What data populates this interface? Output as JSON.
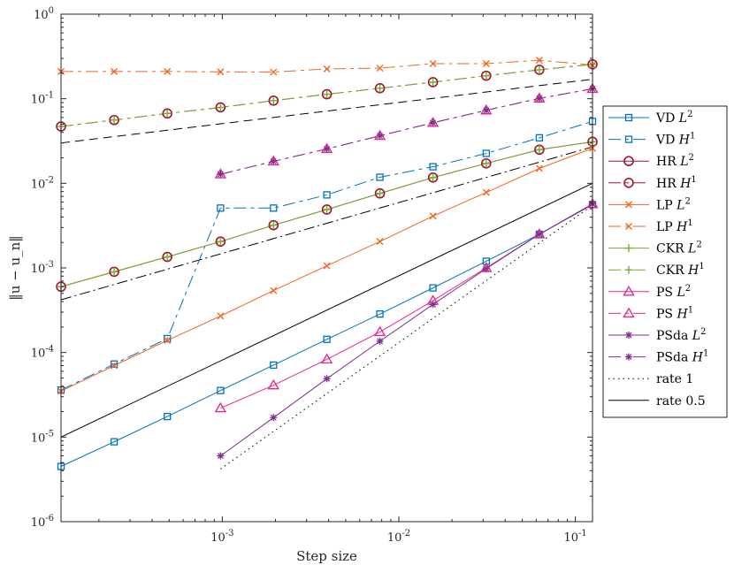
{
  "chart_data": {
    "type": "line",
    "scale": "loglog",
    "xlabel": "Step size",
    "ylabel": "‖u − u_n‖",
    "xlim": [
      0.000122,
      0.125
    ],
    "ylim": [
      1e-06,
      1
    ],
    "x_ticks": [
      {
        "value": 0.001,
        "base": "10",
        "exp": "-3"
      },
      {
        "value": 0.01,
        "base": "10",
        "exp": "-2"
      },
      {
        "value": 0.1,
        "base": "10",
        "exp": "-1"
      }
    ],
    "y_ticks": [
      {
        "value": 1e-06,
        "base": "10",
        "exp": "-6"
      },
      {
        "value": 1e-05,
        "base": "10",
        "exp": "-5"
      },
      {
        "value": 0.0001,
        "base": "10",
        "exp": "-4"
      },
      {
        "value": 0.001,
        "base": "10",
        "exp": "-3"
      },
      {
        "value": 0.01,
        "base": "10",
        "exp": "-2"
      },
      {
        "value": 0.1,
        "base": "10",
        "exp": "-1"
      },
      {
        "value": 1,
        "base": "10",
        "exp": "0"
      }
    ],
    "series": [
      {
        "name": "VD L2",
        "label": "VD",
        "norm": "L",
        "sup": "2",
        "color": "#0072BD",
        "dash": "",
        "marker": "square",
        "x": [
          0.000122,
          0.000244,
          0.000488,
          0.000977,
          0.00195,
          0.00391,
          0.00781,
          0.0156,
          0.03125,
          0.0625,
          0.125
        ],
        "y": [
          4.5e-06,
          8.8e-06,
          1.75e-05,
          3.55e-05,
          7.1e-05,
          0.000143,
          0.000285,
          0.00058,
          0.0012,
          0.0025,
          0.0056
        ]
      },
      {
        "name": "VD H1",
        "label": "VD",
        "norm": "H",
        "sup": "1",
        "color": "#0072BD",
        "dash": "14,5,4,5",
        "marker": "square",
        "x": [
          0.000122,
          0.000244,
          0.000488,
          0.000977,
          0.00195,
          0.00391,
          0.00781,
          0.0156,
          0.03125,
          0.0625,
          0.125
        ],
        "y": [
          3.6e-05,
          7.3e-05,
          0.000146,
          0.0051,
          0.0051,
          0.0073,
          0.0118,
          0.0157,
          0.0226,
          0.0345,
          0.054
        ]
      },
      {
        "name": "HR L2",
        "label": "HR",
        "norm": "L",
        "sup": "2",
        "color": "#A2142F",
        "dash": "",
        "marker": "circle",
        "x": [
          0.000122,
          0.000244,
          0.000488,
          0.000977,
          0.00195,
          0.00391,
          0.00781,
          0.0156,
          0.03125,
          0.0625,
          0.125
        ],
        "y": [
          0.0006,
          0.0009,
          0.00135,
          0.00205,
          0.0032,
          0.0049,
          0.0076,
          0.0117,
          0.0172,
          0.025,
          0.031
        ]
      },
      {
        "name": "HR H1",
        "label": "HR",
        "norm": "H",
        "sup": "1",
        "color": "#A2142F",
        "dash": "14,5,4,5",
        "marker": "circle",
        "x": [
          0.000122,
          0.000244,
          0.000488,
          0.000977,
          0.00195,
          0.00391,
          0.00781,
          0.0156,
          0.03125,
          0.0625,
          0.125
        ],
        "y": [
          0.047,
          0.056,
          0.067,
          0.079,
          0.095,
          0.113,
          0.133,
          0.157,
          0.187,
          0.22,
          0.255
        ]
      },
      {
        "name": "LP L2",
        "label": "LP",
        "norm": "L",
        "sup": "2",
        "color": "#F26522",
        "dash": "",
        "marker": "x",
        "x": [
          0.000122,
          0.000244,
          0.000488,
          0.000977,
          0.00195,
          0.00391,
          0.00781,
          0.0156,
          0.03125,
          0.0625,
          0.125
        ],
        "y": [
          3.5e-05,
          7e-05,
          0.000139,
          0.00027,
          0.00054,
          0.00106,
          0.00205,
          0.0041,
          0.0078,
          0.015,
          0.026
        ]
      },
      {
        "name": "LP H1",
        "label": "LP",
        "norm": "H",
        "sup": "1",
        "color": "#F26522",
        "dash": "14,5,4,5",
        "marker": "x",
        "x": [
          0.000122,
          0.000244,
          0.000488,
          0.000977,
          0.00195,
          0.00391,
          0.00781,
          0.0156,
          0.03125,
          0.0625,
          0.125
        ],
        "y": [
          0.21,
          0.21,
          0.21,
          0.208,
          0.207,
          0.225,
          0.23,
          0.26,
          0.26,
          0.285,
          0.25
        ]
      },
      {
        "name": "CKR L2",
        "label": "CKR",
        "norm": "L",
        "sup": "2",
        "color": "#77AC30",
        "dash": "",
        "marker": "plus",
        "x": [
          0.000122,
          0.000244,
          0.000488,
          0.000977,
          0.00195,
          0.00391,
          0.00781,
          0.0156,
          0.03125,
          0.0625,
          0.125
        ],
        "y": [
          0.0006,
          0.0009,
          0.00135,
          0.00205,
          0.0032,
          0.0049,
          0.0076,
          0.0117,
          0.0172,
          0.025,
          0.031
        ]
      },
      {
        "name": "CKR H1",
        "label": "CKR",
        "norm": "H",
        "sup": "1",
        "color": "#77AC30",
        "dash": "14,5,4,5",
        "marker": "plus",
        "x": [
          0.000122,
          0.000244,
          0.000488,
          0.000977,
          0.00195,
          0.00391,
          0.00781,
          0.0156,
          0.03125,
          0.0625,
          0.125
        ],
        "y": [
          0.047,
          0.056,
          0.067,
          0.079,
          0.095,
          0.113,
          0.133,
          0.157,
          0.187,
          0.22,
          0.255
        ]
      },
      {
        "name": "PS L2",
        "label": "PS",
        "norm": "L",
        "sup": "2",
        "color": "#E7298A",
        "dash": "",
        "marker": "triangle",
        "x": [
          0.000977,
          0.00195,
          0.00391,
          0.00781,
          0.0156,
          0.03125,
          0.0625,
          0.125
        ],
        "y": [
          2.2e-05,
          4.1e-05,
          8.3e-05,
          0.000175,
          0.00041,
          0.001,
          0.0025,
          0.0057
        ]
      },
      {
        "name": "PS H1",
        "label": "PS",
        "norm": "H",
        "sup": "1",
        "color": "#E7298A",
        "dash": "14,5,4,5",
        "marker": "triangle",
        "x": [
          0.000977,
          0.00195,
          0.00391,
          0.00781,
          0.0156,
          0.03125,
          0.0625,
          0.125
        ],
        "y": [
          0.0128,
          0.0182,
          0.0255,
          0.0365,
          0.052,
          0.073,
          0.101,
          0.131
        ]
      },
      {
        "name": "PSda L2",
        "label": "PSda",
        "norm": "L",
        "sup": "2",
        "color": "#7E2F8E",
        "dash": "",
        "marker": "star",
        "x": [
          0.000977,
          0.00195,
          0.00391,
          0.00781,
          0.0156,
          0.03125,
          0.0625,
          0.125
        ],
        "y": [
          6e-06,
          1.7e-05,
          4.9e-05,
          0.000136,
          0.00037,
          0.00098,
          0.0025,
          0.0057
        ]
      },
      {
        "name": "PSda H1",
        "label": "PSda",
        "norm": "H",
        "sup": "1",
        "color": "#7E2F8E",
        "dash": "14,5,4,5",
        "marker": "star",
        "x": [
          0.000977,
          0.00195,
          0.00391,
          0.00781,
          0.0156,
          0.03125,
          0.0625,
          0.125
        ],
        "y": [
          0.0128,
          0.0182,
          0.0255,
          0.0365,
          0.052,
          0.073,
          0.101,
          0.131
        ]
      },
      {
        "name": "rate 1",
        "label": "rate 1",
        "norm": "",
        "sup": "",
        "color": "#000000",
        "dash": "1.5,4",
        "marker": "none",
        "x": [
          0.000977,
          0.125
        ],
        "y": [
          4.2e-06,
          0.0055
        ]
      },
      {
        "name": "rate 0.5",
        "label": "rate 0.5",
        "norm": "",
        "sup": "",
        "color": "#000000",
        "dash": "",
        "marker": "none",
        "x": [
          0.000122,
          0.125
        ],
        "y": [
          1e-05,
          0.01
        ]
      }
    ],
    "reference_lines": [
      {
        "name": "ref-dashdot",
        "color": "#000000",
        "dash": "12,4,2,4",
        "x": [
          0.000122,
          0.125
        ],
        "y": [
          0.00042,
          0.027
        ]
      },
      {
        "name": "ref-dashed",
        "color": "#000000",
        "dash": "10,6",
        "x": [
          0.000122,
          0.125
        ],
        "y": [
          0.03,
          0.17
        ]
      }
    ]
  }
}
